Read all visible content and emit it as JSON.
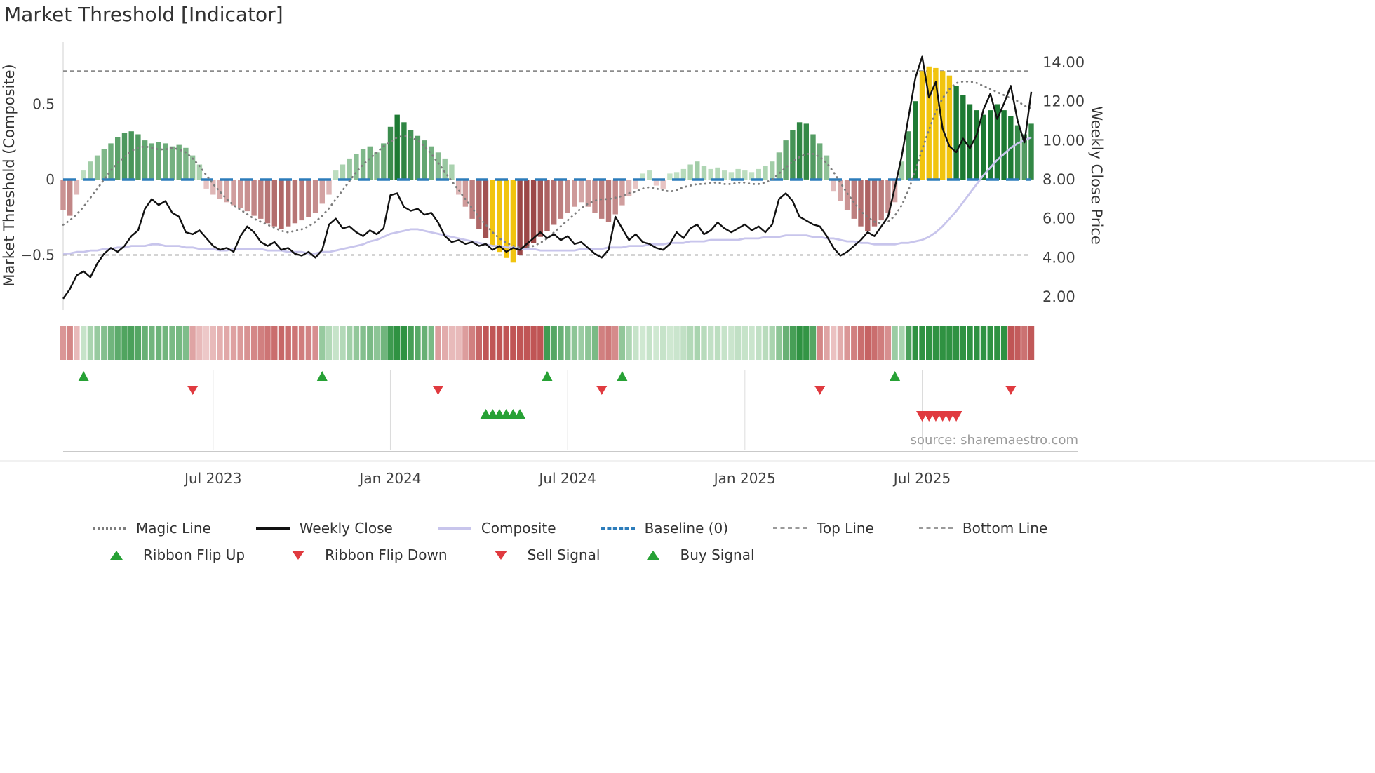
{
  "title": "Market Threshold [Indicator]",
  "source": "source: sharemaestro.com",
  "axes": {
    "left_label": "Market Threshold (Composite)",
    "right_label": "Weekly Close Price"
  },
  "colors": {
    "bar_pos_dark": "#1d7a33",
    "bar_pos_light": "#d6eed6",
    "bar_neg_dark": "#9c4848",
    "bar_neg_light": "#f3d8d8",
    "highlight": "#f1c40f",
    "ribbon_pos_dark": "#2f9242",
    "ribbon_pos_light": "#e2f2e2",
    "ribbon_neg_dark": "#c05555",
    "ribbon_neg_light": "#f6dede",
    "close_line": "#111111",
    "magic_line": "#7d7d7d",
    "composite_line": "#c8c5ec",
    "baseline": "#2d7dbb",
    "ref_line": "#8c8c8c",
    "flip_up": "#27a135",
    "flip_down": "#e03a3f",
    "buy": "#27a135",
    "sell": "#e03a3f",
    "grid": "#dcdcdc",
    "spine": "#d8d8d8",
    "source_text": "#9b9b9b",
    "tick_text": "#3f3f3f"
  },
  "legend": {
    "row1": [
      {
        "label": "Magic Line",
        "swatch": "dotted-gray"
      },
      {
        "label": "Weekly Close",
        "swatch": "solid-black"
      },
      {
        "label": "Composite",
        "swatch": "solid-lavender"
      },
      {
        "label": "Baseline (0)",
        "swatch": "dashed-blue"
      },
      {
        "label": "Top Line",
        "swatch": "dashed-gray"
      },
      {
        "label": "Bottom Line",
        "swatch": "dashed-gray"
      }
    ],
    "row2": [
      {
        "label": "Ribbon Flip Up",
        "swatch": "triangle-up-green"
      },
      {
        "label": "Ribbon Flip Down",
        "swatch": "triangle-down-red"
      },
      {
        "label": "Sell Signal",
        "swatch": "triangle-down-red"
      },
      {
        "label": "Buy Signal",
        "swatch": "triangle-up-green"
      }
    ]
  },
  "chart_data": {
    "type": "bar",
    "x_unit": "week_index",
    "n_points": 143,
    "x_ticks": [
      {
        "week": 22,
        "label": "Jul 2023"
      },
      {
        "week": 48,
        "label": "Jan 2024"
      },
      {
        "week": 74,
        "label": "Jul 2024"
      },
      {
        "week": 100,
        "label": "Jan 2025"
      },
      {
        "week": 126,
        "label": "Jul 2025"
      }
    ],
    "y_left": {
      "ticks": [
        0.5,
        0,
        -0.5
      ],
      "tick_labels": [
        "0.5",
        "0",
        "−0.5"
      ],
      "lim": [
        -0.85,
        0.91
      ]
    },
    "y_right": {
      "ticks": [
        14,
        12,
        10,
        8,
        6,
        4,
        2
      ],
      "tick_labels": [
        "14.00",
        "12.00",
        "10.00",
        "8.00",
        "6.00",
        "4.00",
        "2.00"
      ],
      "lim": [
        1.4,
        15.0
      ]
    },
    "reference_lines": {
      "baseline": 0,
      "top_line": 0.72,
      "bottom_line": -0.5
    },
    "highlight_bar_indices": [
      63,
      64,
      65,
      66,
      126,
      127,
      128,
      129,
      130
    ],
    "signals": {
      "ribbon_start_sign": -1,
      "ribbon_flip_up_weeks": [
        3,
        38,
        71,
        82,
        122
      ],
      "ribbon_flip_down_weeks": [
        19,
        55,
        79,
        111,
        139
      ],
      "buy_signal_weeks": [
        62,
        63,
        64,
        65,
        66,
        67
      ],
      "sell_signal_weeks": [
        126,
        127,
        128,
        129,
        130,
        131
      ]
    },
    "series": [
      {
        "name": "Threshold",
        "kind": "bar",
        "axis": "left",
        "values": [
          -0.2,
          -0.24,
          -0.1,
          0.06,
          0.12,
          0.16,
          0.2,
          0.24,
          0.28,
          0.31,
          0.32,
          0.3,
          0.26,
          0.24,
          0.25,
          0.24,
          0.22,
          0.23,
          0.21,
          0.16,
          0.1,
          -0.06,
          -0.1,
          -0.13,
          -0.15,
          -0.17,
          -0.19,
          -0.21,
          -0.24,
          -0.26,
          -0.29,
          -0.31,
          -0.33,
          -0.31,
          -0.29,
          -0.27,
          -0.25,
          -0.22,
          -0.16,
          -0.1,
          0.06,
          0.1,
          0.14,
          0.17,
          0.2,
          0.22,
          0.18,
          0.24,
          0.35,
          0.43,
          0.38,
          0.33,
          0.29,
          0.26,
          0.22,
          0.18,
          0.14,
          0.1,
          -0.1,
          -0.18,
          -0.26,
          -0.33,
          -0.39,
          -0.44,
          -0.48,
          -0.52,
          -0.55,
          -0.5,
          -0.46,
          -0.42,
          -0.38,
          -0.34,
          -0.3,
          -0.26,
          -0.22,
          -0.18,
          -0.15,
          -0.18,
          -0.22,
          -0.26,
          -0.28,
          -0.23,
          -0.17,
          -0.11,
          -0.06,
          0.04,
          0.06,
          -0.04,
          -0.06,
          0.04,
          0.05,
          0.07,
          0.1,
          0.12,
          0.09,
          0.07,
          0.08,
          0.06,
          0.05,
          0.07,
          0.06,
          0.05,
          0.07,
          0.09,
          0.12,
          0.18,
          0.26,
          0.33,
          0.38,
          0.37,
          0.3,
          0.24,
          0.16,
          -0.08,
          -0.14,
          -0.2,
          -0.26,
          -0.31,
          -0.34,
          -0.31,
          -0.27,
          -0.22,
          -0.15,
          0.12,
          0.32,
          0.52,
          0.72,
          0.75,
          0.74,
          0.72,
          0.69,
          0.62,
          0.56,
          0.5,
          0.46,
          0.43,
          0.46,
          0.5,
          0.46,
          0.42,
          0.36,
          0.3,
          0.37
        ]
      },
      {
        "name": "Magic Line",
        "kind": "line",
        "style": "dotted",
        "axis": "left",
        "values": [
          -0.3,
          -0.27,
          -0.23,
          -0.18,
          -0.12,
          -0.06,
          0.0,
          0.06,
          0.11,
          0.15,
          0.19,
          0.21,
          0.22,
          0.21,
          0.2,
          0.2,
          0.21,
          0.2,
          0.18,
          0.14,
          0.09,
          0.03,
          -0.03,
          -0.08,
          -0.13,
          -0.17,
          -0.2,
          -0.23,
          -0.26,
          -0.28,
          -0.3,
          -0.32,
          -0.34,
          -0.35,
          -0.34,
          -0.33,
          -0.31,
          -0.28,
          -0.24,
          -0.19,
          -0.13,
          -0.07,
          -0.01,
          0.05,
          0.1,
          0.14,
          0.18,
          0.22,
          0.25,
          0.28,
          0.29,
          0.28,
          0.26,
          0.22,
          0.17,
          0.11,
          0.05,
          -0.01,
          -0.07,
          -0.13,
          -0.19,
          -0.25,
          -0.3,
          -0.35,
          -0.39,
          -0.42,
          -0.44,
          -0.45,
          -0.45,
          -0.44,
          -0.42,
          -0.39,
          -0.35,
          -0.31,
          -0.27,
          -0.23,
          -0.19,
          -0.16,
          -0.14,
          -0.13,
          -0.13,
          -0.12,
          -0.11,
          -0.09,
          -0.08,
          -0.06,
          -0.05,
          -0.06,
          -0.07,
          -0.08,
          -0.07,
          -0.05,
          -0.04,
          -0.03,
          -0.03,
          -0.02,
          -0.02,
          -0.03,
          -0.03,
          -0.02,
          -0.02,
          -0.03,
          -0.03,
          -0.02,
          0.0,
          0.04,
          0.08,
          0.12,
          0.15,
          0.17,
          0.17,
          0.15,
          0.11,
          0.05,
          -0.02,
          -0.09,
          -0.15,
          -0.21,
          -0.25,
          -0.28,
          -0.29,
          -0.28,
          -0.24,
          -0.17,
          -0.07,
          0.06,
          0.2,
          0.33,
          0.45,
          0.54,
          0.6,
          0.64,
          0.65,
          0.65,
          0.64,
          0.62,
          0.6,
          0.58,
          0.56,
          0.54,
          0.52,
          0.49,
          0.47
        ]
      },
      {
        "name": "Composite",
        "kind": "line",
        "axis": "left",
        "values": [
          -0.49,
          -0.49,
          -0.48,
          -0.48,
          -0.47,
          -0.47,
          -0.46,
          -0.46,
          -0.45,
          -0.45,
          -0.44,
          -0.44,
          -0.44,
          -0.43,
          -0.43,
          -0.44,
          -0.44,
          -0.44,
          -0.45,
          -0.45,
          -0.46,
          -0.46,
          -0.46,
          -0.47,
          -0.47,
          -0.46,
          -0.46,
          -0.46,
          -0.46,
          -0.46,
          -0.47,
          -0.47,
          -0.47,
          -0.48,
          -0.48,
          -0.48,
          -0.49,
          -0.49,
          -0.48,
          -0.48,
          -0.47,
          -0.46,
          -0.45,
          -0.44,
          -0.43,
          -0.41,
          -0.4,
          -0.38,
          -0.36,
          -0.35,
          -0.34,
          -0.33,
          -0.33,
          -0.34,
          -0.35,
          -0.36,
          -0.37,
          -0.38,
          -0.39,
          -0.4,
          -0.41,
          -0.42,
          -0.43,
          -0.44,
          -0.44,
          -0.45,
          -0.45,
          -0.46,
          -0.46,
          -0.46,
          -0.47,
          -0.47,
          -0.47,
          -0.47,
          -0.47,
          -0.47,
          -0.46,
          -0.46,
          -0.46,
          -0.46,
          -0.45,
          -0.45,
          -0.45,
          -0.44,
          -0.44,
          -0.44,
          -0.43,
          -0.43,
          -0.43,
          -0.42,
          -0.42,
          -0.42,
          -0.41,
          -0.41,
          -0.41,
          -0.4,
          -0.4,
          -0.4,
          -0.4,
          -0.4,
          -0.39,
          -0.39,
          -0.39,
          -0.38,
          -0.38,
          -0.38,
          -0.37,
          -0.37,
          -0.37,
          -0.37,
          -0.38,
          -0.38,
          -0.39,
          -0.39,
          -0.4,
          -0.41,
          -0.41,
          -0.42,
          -0.42,
          -0.43,
          -0.43,
          -0.43,
          -0.43,
          -0.42,
          -0.42,
          -0.41,
          -0.4,
          -0.38,
          -0.35,
          -0.31,
          -0.26,
          -0.21,
          -0.15,
          -0.09,
          -0.03,
          0.03,
          0.08,
          0.13,
          0.17,
          0.21,
          0.24,
          0.26,
          0.28
        ]
      },
      {
        "name": "Weekly Close",
        "kind": "line",
        "axis": "right",
        "values": [
          1.9,
          2.4,
          3.1,
          3.3,
          3.0,
          3.7,
          4.2,
          4.5,
          4.3,
          4.6,
          5.1,
          5.4,
          6.5,
          7.0,
          6.7,
          6.9,
          6.3,
          6.1,
          5.3,
          5.2,
          5.4,
          5.0,
          4.6,
          4.4,
          4.5,
          4.3,
          5.1,
          5.6,
          5.3,
          4.8,
          4.6,
          4.8,
          4.4,
          4.5,
          4.2,
          4.1,
          4.3,
          4.0,
          4.4,
          5.7,
          6.0,
          5.5,
          5.6,
          5.3,
          5.1,
          5.4,
          5.2,
          5.5,
          7.2,
          7.3,
          6.6,
          6.4,
          6.5,
          6.2,
          6.3,
          5.8,
          5.1,
          4.8,
          4.9,
          4.7,
          4.8,
          4.6,
          4.7,
          4.4,
          4.6,
          4.3,
          4.5,
          4.4,
          4.7,
          5.0,
          5.3,
          5.0,
          5.2,
          4.9,
          5.1,
          4.7,
          4.8,
          4.5,
          4.2,
          4.0,
          4.4,
          6.1,
          5.5,
          4.9,
          5.2,
          4.8,
          4.7,
          4.5,
          4.4,
          4.7,
          5.3,
          5.0,
          5.5,
          5.7,
          5.2,
          5.4,
          5.8,
          5.5,
          5.3,
          5.5,
          5.7,
          5.4,
          5.6,
          5.3,
          5.7,
          7.0,
          7.3,
          6.9,
          6.1,
          5.9,
          5.7,
          5.6,
          5.1,
          4.5,
          4.1,
          4.3,
          4.6,
          4.9,
          5.3,
          5.1,
          5.6,
          6.1,
          7.6,
          9.2,
          11.2,
          13.2,
          14.3,
          12.2,
          13.0,
          10.6,
          9.7,
          9.4,
          10.1,
          9.6,
          10.3,
          11.6,
          12.4,
          11.1,
          11.9,
          12.8,
          11.0,
          9.9,
          12.5
        ]
      }
    ]
  }
}
